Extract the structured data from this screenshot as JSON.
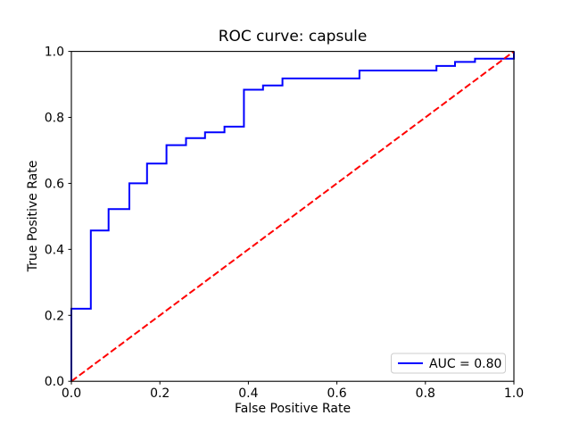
{
  "chart_data": {
    "type": "line",
    "title": "ROC curve: capsule",
    "xlabel": "False Positive Rate",
    "ylabel": "True Positive Rate",
    "xlim": [
      0.0,
      1.0
    ],
    "ylim": [
      0.0,
      1.0
    ],
    "x_ticks": [
      "0.0",
      "0.2",
      "0.4",
      "0.6",
      "0.8",
      "1.0"
    ],
    "y_ticks": [
      "0.0",
      "0.2",
      "0.4",
      "0.6",
      "0.8",
      "1.0"
    ],
    "grid": false,
    "background_color": "#ffffff",
    "axis_color": "#000000",
    "legend": {
      "position": "lower right",
      "border_color": "#cccccc",
      "entries": [
        {
          "label": "AUC = 0.80",
          "color": "#0000ff",
          "style": "solid"
        }
      ]
    },
    "auc": 0.8,
    "series": [
      {
        "name": "roc-curve",
        "color": "#0000ff",
        "style": "solid",
        "points": [
          [
            0.0,
            0.0
          ],
          [
            0.0,
            0.22
          ],
          [
            0.044,
            0.22
          ],
          [
            0.044,
            0.457
          ],
          [
            0.084,
            0.457
          ],
          [
            0.084,
            0.522
          ],
          [
            0.131,
            0.522
          ],
          [
            0.131,
            0.6
          ],
          [
            0.171,
            0.6
          ],
          [
            0.171,
            0.66
          ],
          [
            0.215,
            0.66
          ],
          [
            0.215,
            0.716
          ],
          [
            0.259,
            0.716
          ],
          [
            0.259,
            0.737
          ],
          [
            0.302,
            0.737
          ],
          [
            0.302,
            0.755
          ],
          [
            0.346,
            0.755
          ],
          [
            0.346,
            0.772
          ],
          [
            0.39,
            0.772
          ],
          [
            0.39,
            0.884
          ],
          [
            0.433,
            0.884
          ],
          [
            0.433,
            0.897
          ],
          [
            0.477,
            0.897
          ],
          [
            0.477,
            0.918
          ],
          [
            0.651,
            0.918
          ],
          [
            0.651,
            0.942
          ],
          [
            0.825,
            0.942
          ],
          [
            0.825,
            0.956
          ],
          [
            0.867,
            0.956
          ],
          [
            0.867,
            0.968
          ],
          [
            0.912,
            0.968
          ],
          [
            0.912,
            0.978
          ],
          [
            1.0,
            0.978
          ],
          [
            1.0,
            1.0
          ]
        ]
      },
      {
        "name": "chance-diagonal",
        "color": "#ff0000",
        "style": "dashed",
        "points": [
          [
            0.0,
            0.0
          ],
          [
            1.0,
            1.0
          ]
        ]
      }
    ]
  }
}
